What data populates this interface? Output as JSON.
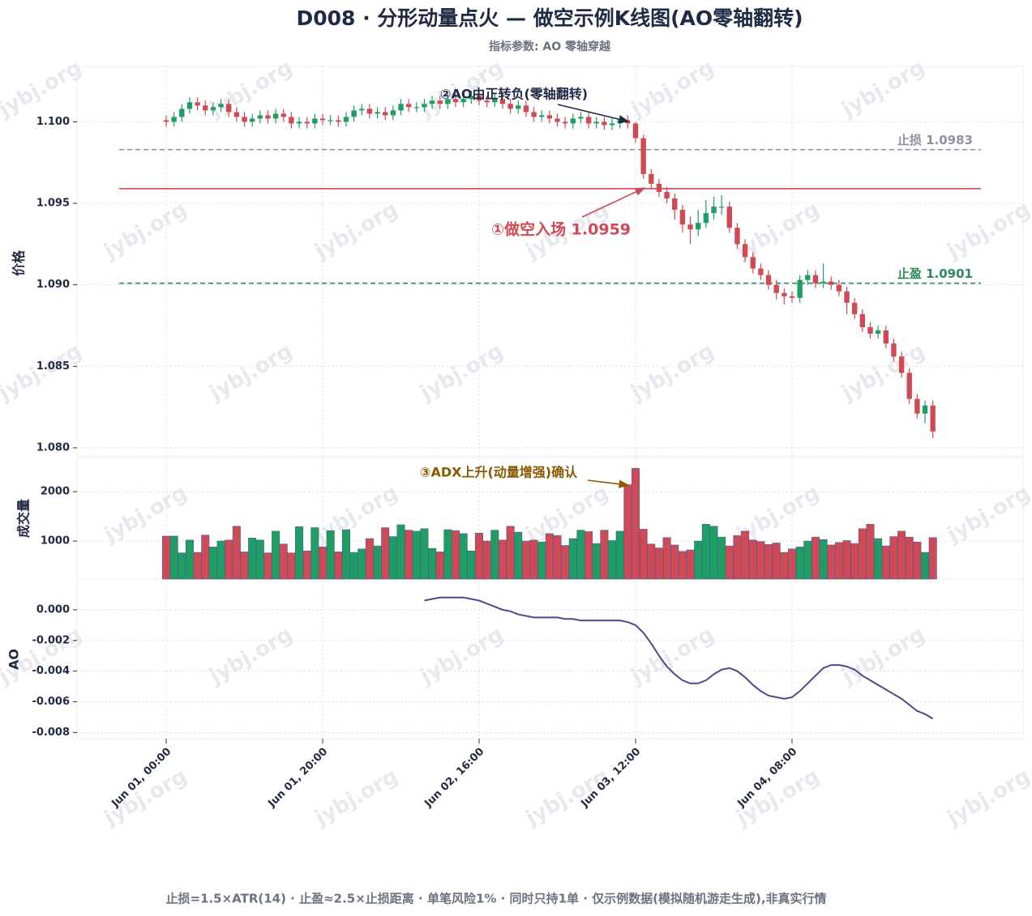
{
  "chart_data": {
    "type": "candlestick",
    "title": "D008 · 分形动量点火 — 做空示例K线图(AO零轴翻转)",
    "subtitle": "指标参数: AO 零轴穿越",
    "footer": "止损=1.5×ATR(14)  ·  止盈≈2.5×止损距离  ·  单笔风险1%  ·  同时只持1单  ·  仅示例数据(模拟随机游走生成),非真实行情",
    "watermark": "jybj.org",
    "ylabel": "价格",
    "up_color": "#1f9e63",
    "down_color": "#d04a55",
    "grid": true,
    "x": [
      "Jun 01, 00:00",
      "Jun 01, 01:00",
      "Jun 01, 02:00",
      "Jun 01, 03:00",
      "Jun 01, 04:00",
      "Jun 01, 05:00",
      "Jun 01, 06:00",
      "Jun 01, 07:00",
      "Jun 01, 08:00",
      "Jun 01, 09:00",
      "Jun 01, 10:00",
      "Jun 01, 11:00",
      "Jun 01, 12:00",
      "Jun 01, 13:00",
      "Jun 01, 14:00",
      "Jun 01, 15:00",
      "Jun 01, 16:00",
      "Jun 01, 17:00",
      "Jun 01, 18:00",
      "Jun 01, 19:00",
      "Jun 01, 20:00",
      "Jun 01, 21:00",
      "Jun 01, 22:00",
      "Jun 01, 23:00",
      "Jun 02, 00:00",
      "Jun 02, 01:00",
      "Jun 02, 02:00",
      "Jun 02, 03:00",
      "Jun 02, 04:00",
      "Jun 02, 05:00",
      "Jun 02, 06:00",
      "Jun 02, 07:00",
      "Jun 02, 08:00",
      "Jun 02, 09:00",
      "Jun 02, 10:00",
      "Jun 02, 11:00",
      "Jun 02, 12:00",
      "Jun 02, 13:00",
      "Jun 02, 14:00",
      "Jun 02, 15:00",
      "Jun 02, 16:00",
      "Jun 02, 17:00",
      "Jun 02, 18:00",
      "Jun 02, 19:00",
      "Jun 02, 20:00",
      "Jun 02, 21:00",
      "Jun 02, 22:00",
      "Jun 02, 23:00",
      "Jun 03, 00:00",
      "Jun 03, 01:00",
      "Jun 03, 02:00",
      "Jun 03, 03:00",
      "Jun 03, 04:00",
      "Jun 03, 05:00",
      "Jun 03, 06:00",
      "Jun 03, 07:00",
      "Jun 03, 08:00",
      "Jun 03, 09:00",
      "Jun 03, 10:00",
      "Jun 03, 11:00",
      "Jun 03, 12:00",
      "Jun 03, 13:00",
      "Jun 03, 14:00",
      "Jun 03, 15:00",
      "Jun 03, 16:00",
      "Jun 03, 17:00",
      "Jun 03, 18:00",
      "Jun 03, 19:00",
      "Jun 03, 20:00",
      "Jun 03, 21:00",
      "Jun 03, 22:00",
      "Jun 03, 23:00",
      "Jun 04, 00:00",
      "Jun 04, 01:00",
      "Jun 04, 02:00",
      "Jun 04, 03:00",
      "Jun 04, 04:00",
      "Jun 04, 05:00",
      "Jun 04, 06:00",
      "Jun 04, 07:00",
      "Jun 04, 08:00",
      "Jun 04, 09:00",
      "Jun 04, 10:00",
      "Jun 04, 11:00",
      "Jun 04, 12:00",
      "Jun 04, 13:00",
      "Jun 04, 14:00",
      "Jun 04, 15:00",
      "Jun 04, 16:00",
      "Jun 04, 17:00",
      "Jun 04, 18:00",
      "Jun 04, 19:00",
      "Jun 04, 20:00",
      "Jun 04, 21:00",
      "Jun 04, 22:00",
      "Jun 04, 23:00",
      "Jun 05, 00:00",
      "Jun 05, 01:00",
      "Jun 05, 02:00"
    ],
    "open": [
      1.1001,
      1.1,
      1.1003,
      1.1008,
      1.1012,
      1.101,
      1.1007,
      1.1009,
      1.1011,
      1.1006,
      1.1003,
      1.1,
      1.1002,
      1.1004,
      1.1002,
      1.1005,
      1.1003,
      1.0999,
      1.1,
      1.0999,
      1.1002,
      1.1001,
      1.1001,
      1.1,
      1.1003,
      1.1007,
      1.1008,
      1.1005,
      1.1006,
      1.1004,
      1.1007,
      1.1011,
      1.1009,
      1.1009,
      1.1011,
      1.1013,
      1.1011,
      1.1014,
      1.1012,
      1.1014,
      1.1016,
      1.1013,
      1.1012,
      1.1014,
      1.1011,
      1.1008,
      1.101,
      1.1006,
      1.1003,
      1.1004,
      1.1002,
      1.1,
      1.0999,
      1.1002,
      1.1003,
      1.0999,
      1.1,
      1.0998,
      1.0999,
      1.1001,
      1.0999,
      1.099,
      1.0968,
      1.0962,
      1.0957,
      1.0953,
      1.0946,
      1.0937,
      1.0934,
      1.0938,
      1.0944,
      1.0948,
      1.0948,
      1.0935,
      1.0925,
      1.0917,
      1.091,
      1.0906,
      1.09,
      1.0895,
      1.0893,
      1.0892,
      1.0903,
      1.0906,
      1.0901,
      1.0902,
      1.09,
      1.0896,
      1.0889,
      1.0882,
      1.0874,
      1.087,
      1.0872,
      1.0864,
      1.0856,
      1.0846,
      1.083,
      1.0821,
      1.0826
    ],
    "high": [
      1.1004,
      1.1006,
      1.1011,
      1.1015,
      1.1015,
      1.1013,
      1.1012,
      1.1014,
      1.1014,
      1.1009,
      1.1006,
      1.1005,
      1.1007,
      1.1007,
      1.1008,
      1.1008,
      1.1006,
      1.1003,
      1.1003,
      1.1005,
      1.1005,
      1.1004,
      1.1004,
      1.1006,
      1.101,
      1.1011,
      1.1011,
      1.1009,
      1.1009,
      1.101,
      1.1014,
      1.1014,
      1.1012,
      1.1014,
      1.1016,
      1.1016,
      1.1017,
      1.1017,
      1.1017,
      1.1019,
      1.1019,
      1.1016,
      1.1017,
      1.1017,
      1.1014,
      1.1013,
      1.1013,
      1.1009,
      1.1007,
      1.1007,
      1.1005,
      1.1003,
      1.1005,
      1.1006,
      1.1006,
      1.1003,
      1.1003,
      1.1002,
      1.1004,
      1.1004,
      1.1,
      1.0992,
      1.0971,
      1.0965,
      1.096,
      1.0956,
      1.0949,
      1.0942,
      1.0946,
      1.0952,
      1.0954,
      1.0955,
      1.0951,
      1.0938,
      1.0928,
      1.092,
      1.0913,
      1.0909,
      1.0903,
      1.0898,
      1.0896,
      1.0906,
      1.0909,
      1.0909,
      1.0913,
      1.0905,
      1.0903,
      1.0899,
      1.0892,
      1.0885,
      1.0877,
      1.0875,
      1.0875,
      1.0867,
      1.0859,
      1.0849,
      1.0833,
      1.0829,
      1.0829
    ],
    "low": [
      1.0997,
      1.0997,
      1.1,
      1.1005,
      1.1007,
      1.1004,
      1.1004,
      1.1006,
      1.1003,
      1.1,
      1.0997,
      1.0997,
      1.0999,
      1.0999,
      1.0999,
      1.1,
      1.0996,
      1.0996,
      1.0996,
      1.0996,
      1.0998,
      1.0998,
      1.0997,
      1.0997,
      1.1,
      1.1004,
      1.1002,
      1.1002,
      1.1001,
      1.1001,
      1.1004,
      1.1006,
      1.1006,
      1.1006,
      1.1008,
      1.1008,
      1.1008,
      1.1009,
      1.1009,
      1.1011,
      1.101,
      1.1009,
      1.1009,
      1.1008,
      1.1005,
      1.1005,
      1.1003,
      1.1,
      1.1,
      1.0999,
      1.0997,
      1.0996,
      1.0996,
      1.0999,
      1.0996,
      1.0996,
      1.0995,
      1.0995,
      1.0996,
      1.0996,
      1.0987,
      1.0965,
      1.0959,
      1.0954,
      1.095,
      1.094,
      1.0932,
      1.0925,
      1.093,
      1.0935,
      1.094,
      1.0943,
      1.0932,
      1.0922,
      1.0914,
      1.0907,
      1.0903,
      1.0897,
      1.0891,
      1.0888,
      1.0889,
      1.0889,
      1.09,
      1.0898,
      1.0898,
      1.0897,
      1.0893,
      1.0882,
      1.0879,
      1.0871,
      1.0867,
      1.0867,
      1.0861,
      1.0853,
      1.0843,
      1.0827,
      1.0818,
      1.0815,
      1.0806
    ],
    "close": [
      1.1,
      1.1003,
      1.1008,
      1.1012,
      1.101,
      1.1007,
      1.1009,
      1.1011,
      1.1006,
      1.1003,
      1.1,
      1.1002,
      1.1004,
      1.1002,
      1.1005,
      1.1003,
      1.0999,
      1.1,
      1.0999,
      1.1002,
      1.1001,
      1.1001,
      1.1,
      1.1003,
      1.1007,
      1.1008,
      1.1005,
      1.1006,
      1.1004,
      1.1007,
      1.1011,
      1.1009,
      1.1009,
      1.1011,
      1.1013,
      1.1011,
      1.1014,
      1.1012,
      1.1014,
      1.1016,
      1.1013,
      1.1012,
      1.1014,
      1.1011,
      1.1008,
      1.101,
      1.1006,
      1.1003,
      1.1004,
      1.1002,
      1.1,
      1.0999,
      1.1002,
      1.1003,
      1.0999,
      1.1,
      1.0998,
      1.0999,
      1.1001,
      1.0999,
      1.099,
      1.0968,
      1.0962,
      1.0957,
      1.0953,
      1.0946,
      1.0937,
      1.0934,
      1.0938,
      1.0944,
      1.0948,
      1.0948,
      1.0935,
      1.0925,
      1.0917,
      1.091,
      1.0906,
      1.09,
      1.0895,
      1.0893,
      1.0892,
      1.0903,
      1.0906,
      1.0901,
      1.0902,
      1.09,
      1.0896,
      1.0889,
      1.0882,
      1.0874,
      1.087,
      1.0872,
      1.0864,
      1.0856,
      1.0846,
      1.083,
      1.0821,
      1.0826,
      1.081
    ],
    "ylim": [
      1.0795,
      1.1034
    ],
    "yticks": [
      {
        "value": 1.08,
        "label": "1.080"
      },
      1.085,
      {
        "value": 1.09,
        "label": "1.090"
      },
      1.095,
      {
        "value": 1.1,
        "label": "1.100"
      }
    ],
    "levels": [
      {
        "name": "止损",
        "value": 1.0983,
        "label": "止损 1.0983",
        "color": "#8a93a3",
        "dash": true
      },
      {
        "name": "入场",
        "value": 1.0959,
        "color": "#d04a55",
        "dash": false
      },
      {
        "name": "止盈",
        "value": 1.0901,
        "label": "止盈 1.0901",
        "color": "#2a8a5a",
        "dash": true
      }
    ],
    "annotations": [
      {
        "text": "②AO由正转负(零轴翻转)",
        "color": "#1f2a44"
      },
      {
        "text": "①做空入场 1.0959",
        "color": "#d04a55"
      },
      {
        "text": "③ADX上升(动量增强)确认",
        "color": "#8a5a00"
      }
    ],
    "volume": {
      "type": "bar",
      "ylabel": "成交量",
      "values": [
        1100,
        1100,
        760,
        1020,
        770,
        1120,
        880,
        1000,
        1020,
        1300,
        780,
        1060,
        1020,
        760,
        1200,
        940,
        760,
        1290,
        800,
        1270,
        880,
        1210,
        780,
        1230,
        770,
        840,
        1050,
        900,
        1270,
        1090,
        1330,
        1220,
        1200,
        1250,
        850,
        780,
        1230,
        1210,
        1150,
        800,
        1160,
        1000,
        1220,
        1020,
        1300,
        1180,
        1000,
        1020,
        980,
        1150,
        1110,
        910,
        1050,
        1220,
        1190,
        950,
        1220,
        1010,
        1200,
        2140,
        2470,
        1240,
        940,
        860,
        1070,
        920,
        790,
        820,
        1000,
        1340,
        1300,
        1080,
        900,
        1110,
        1200,
        1020,
        990,
        930,
        960,
        770,
        840,
        880,
        1000,
        1080,
        1030,
        920,
        970,
        1010,
        950,
        1250,
        1340,
        1050,
        900,
        1090,
        1200,
        1080,
        980,
        770,
        1070
      ],
      "ylim": [
        230,
        2690
      ],
      "yticks": [
        1000,
        2000
      ]
    },
    "ao": {
      "type": "line",
      "ylabel": "AO",
      "color": "#4b4a8c",
      "values": [
        null,
        null,
        null,
        null,
        null,
        null,
        null,
        null,
        null,
        null,
        null,
        null,
        null,
        null,
        null,
        null,
        null,
        null,
        null,
        null,
        null,
        null,
        null,
        null,
        null,
        null,
        null,
        null,
        null,
        null,
        null,
        null,
        null,
        0.0006,
        0.0007,
        0.0008,
        0.0008,
        0.0008,
        0.0008,
        0.0007,
        0.0006,
        0.0004,
        0.0002,
        0.0,
        -0.0001,
        -0.0003,
        -0.0004,
        -0.0005,
        -0.0005,
        -0.0005,
        -0.0005,
        -0.0006,
        -0.0006,
        -0.0007,
        -0.0007,
        -0.0007,
        -0.0007,
        -0.0007,
        -0.0007,
        -0.0008,
        -0.001,
        -0.0015,
        -0.0022,
        -0.003,
        -0.0037,
        -0.0042,
        -0.0046,
        -0.0048,
        -0.0048,
        -0.0046,
        -0.0042,
        -0.0039,
        -0.0038,
        -0.004,
        -0.0044,
        -0.0049,
        -0.0053,
        -0.0056,
        -0.0057,
        -0.0058,
        -0.0057,
        -0.0053,
        -0.0048,
        -0.0043,
        -0.0038,
        -0.0036,
        -0.0036,
        -0.0037,
        -0.0039,
        -0.0043,
        -0.0046,
        -0.0049,
        -0.0052,
        -0.0055,
        -0.0058,
        -0.0062,
        -0.0066,
        -0.0068,
        -0.0071
      ],
      "ylim": [
        -0.0084,
        0.002
      ],
      "yticks": [
        -0.008,
        -0.006,
        -0.004,
        -0.002,
        {
          "value": 0,
          "label": "0.000"
        }
      ]
    }
  }
}
